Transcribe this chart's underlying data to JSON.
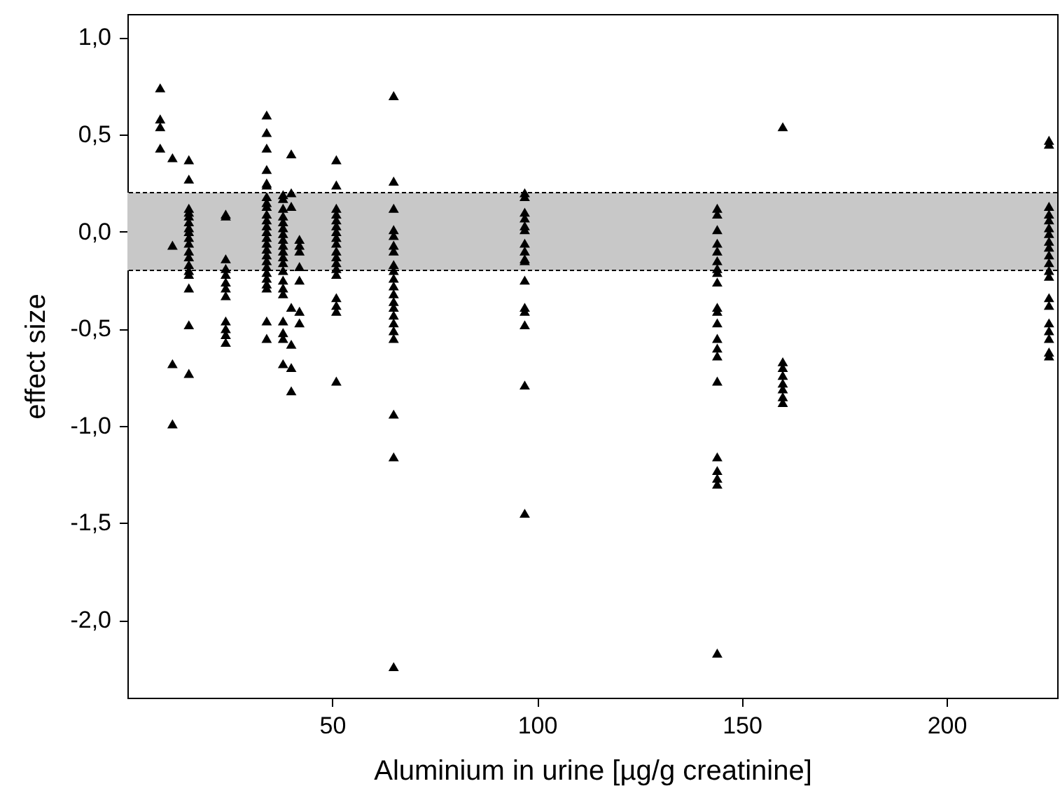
{
  "chart_data": {
    "type": "scatter",
    "xlabel": "Aluminium in urine [µg/g creatinine]",
    "ylabel": "effect size",
    "xlim": [
      0,
      227
    ],
    "xticks": [
      50,
      100,
      150,
      200
    ],
    "ylim": [
      -2.4,
      1.12
    ],
    "yticks": [
      {
        "value": -2,
        "label": "-2,0"
      },
      {
        "value": -1.5,
        "label": "-1,5"
      },
      {
        "value": -1,
        "label": "-1,0"
      },
      {
        "value": -0.5,
        "label": "-0,5"
      },
      {
        "value": 0,
        "label": "0,0"
      },
      {
        "value": 0.5,
        "label": "0,5"
      },
      {
        "value": 1,
        "label": "1,0"
      }
    ],
    "grid": false,
    "marker": "triangle",
    "bands": [
      {
        "axis": "y",
        "from": -0.2,
        "to": 0.2,
        "color": "#c8c8c8"
      }
    ],
    "ref_lines": [
      {
        "axis": "y",
        "value": -0.2,
        "color": "#000000",
        "line_style": "dashed"
      },
      {
        "axis": "y",
        "value": 0.2,
        "color": "#000000",
        "line_style": "dashed"
      }
    ],
    "series": [
      {
        "color": "#000000",
        "x": [
          8,
          8,
          8,
          8,
          11,
          11,
          11,
          11,
          15,
          15,
          15,
          15,
          15,
          15,
          15,
          15,
          15,
          15,
          15,
          15,
          15,
          15,
          15,
          15,
          15,
          15,
          24,
          24,
          24,
          24,
          24,
          24,
          24,
          24,
          24,
          24,
          24,
          24,
          34,
          34,
          34,
          34,
          34,
          34,
          34,
          34,
          34,
          34,
          34,
          34,
          34,
          34,
          34,
          34,
          34,
          34,
          34,
          34,
          34,
          34,
          34,
          34,
          34,
          38,
          38,
          38,
          38,
          38,
          38,
          38,
          38,
          38,
          38,
          38,
          38,
          38,
          38,
          38,
          38,
          38,
          38,
          38,
          38,
          40,
          40,
          40,
          40,
          40,
          40,
          40,
          42,
          42,
          42,
          42,
          42,
          42,
          42,
          51,
          51,
          51,
          51,
          51,
          51,
          51,
          51,
          51,
          51,
          51,
          51,
          51,
          51,
          51,
          51,
          51,
          51,
          65,
          65,
          65,
          65,
          65,
          65,
          65,
          65,
          65,
          65,
          65,
          65,
          65,
          65,
          65,
          65,
          65,
          65,
          65,
          65,
          65,
          97,
          97,
          97,
          97,
          97,
          97,
          97,
          97,
          97,
          97,
          97,
          97,
          97,
          97,
          97,
          97,
          144,
          144,
          144,
          144,
          144,
          144,
          144,
          144,
          144,
          144,
          144,
          144,
          144,
          144,
          144,
          144,
          144,
          144,
          144,
          144,
          144,
          160,
          160,
          160,
          160,
          160,
          160,
          160,
          160,
          225,
          225,
          225,
          225,
          225,
          225,
          225,
          225,
          225,
          225,
          225,
          225,
          225,
          225,
          225,
          225,
          225,
          225,
          225,
          225
        ],
        "values": [
          0.74,
          0.58,
          0.54,
          0.43,
          0.38,
          -0.07,
          -0.68,
          -0.99,
          0.37,
          0.27,
          0.12,
          0.1,
          0.08,
          0.05,
          0.02,
          0,
          -0.03,
          -0.06,
          -0.1,
          -0.13,
          -0.17,
          -0.2,
          -0.22,
          -0.29,
          -0.48,
          -0.73,
          0.09,
          0.08,
          -0.14,
          -0.19,
          -0.22,
          -0.26,
          -0.29,
          -0.33,
          -0.46,
          -0.5,
          -0.53,
          -0.57,
          0.6,
          0.51,
          0.43,
          0.32,
          0.25,
          0.24,
          0.18,
          0.15,
          0.13,
          0.09,
          0.06,
          0.03,
          0,
          -0.03,
          -0.06,
          -0.09,
          -0.12,
          -0.15,
          -0.18,
          -0.21,
          -0.24,
          -0.27,
          -0.29,
          -0.46,
          -0.55,
          0.19,
          0.17,
          0.12,
          0.08,
          0.05,
          0.02,
          -0.01,
          -0.04,
          -0.07,
          -0.1,
          -0.13,
          -0.16,
          -0.2,
          -0.25,
          -0.29,
          -0.32,
          -0.46,
          -0.52,
          -0.55,
          -0.68,
          0.4,
          0.2,
          0.13,
          -0.39,
          -0.58,
          -0.7,
          -0.82,
          -0.04,
          -0.07,
          -0.1,
          -0.18,
          -0.25,
          -0.41,
          -0.47,
          0.37,
          0.24,
          0.12,
          0.09,
          0.06,
          0.03,
          0,
          -0.03,
          -0.06,
          -0.1,
          -0.13,
          -0.16,
          -0.19,
          -0.22,
          -0.34,
          -0.38,
          -0.41,
          -0.77,
          0.7,
          0.26,
          0.12,
          0.01,
          -0.02,
          -0.07,
          -0.1,
          -0.17,
          -0.2,
          -0.24,
          -0.28,
          -0.32,
          -0.36,
          -0.39,
          -0.43,
          -0.47,
          -0.51,
          -0.55,
          -0.94,
          -1.16,
          -2.24,
          0.2,
          0.18,
          0.1,
          0.07,
          0.03,
          0.01,
          -0.06,
          -0.1,
          -0.14,
          -0.15,
          -0.25,
          -0.39,
          -0.41,
          -0.48,
          -0.79,
          -1.45,
          0.12,
          0.09,
          0.01,
          -0.06,
          -0.1,
          -0.15,
          -0.19,
          -0.21,
          -0.26,
          -0.39,
          -0.41,
          -0.47,
          -0.55,
          -0.6,
          -0.64,
          -0.77,
          -1.16,
          -1.23,
          -1.27,
          -1.3,
          -2.17,
          0.54,
          -0.67,
          -0.7,
          -0.74,
          -0.78,
          -0.81,
          -0.85,
          -0.88,
          0.47,
          0.45,
          0.13,
          0.09,
          0.06,
          0.02,
          -0.01,
          -0.05,
          -0.08,
          -0.12,
          -0.16,
          -0.2,
          -0.23,
          -0.34,
          -0.38,
          -0.47,
          -0.51,
          -0.55,
          -0.62,
          -0.64
        ]
      }
    ]
  }
}
